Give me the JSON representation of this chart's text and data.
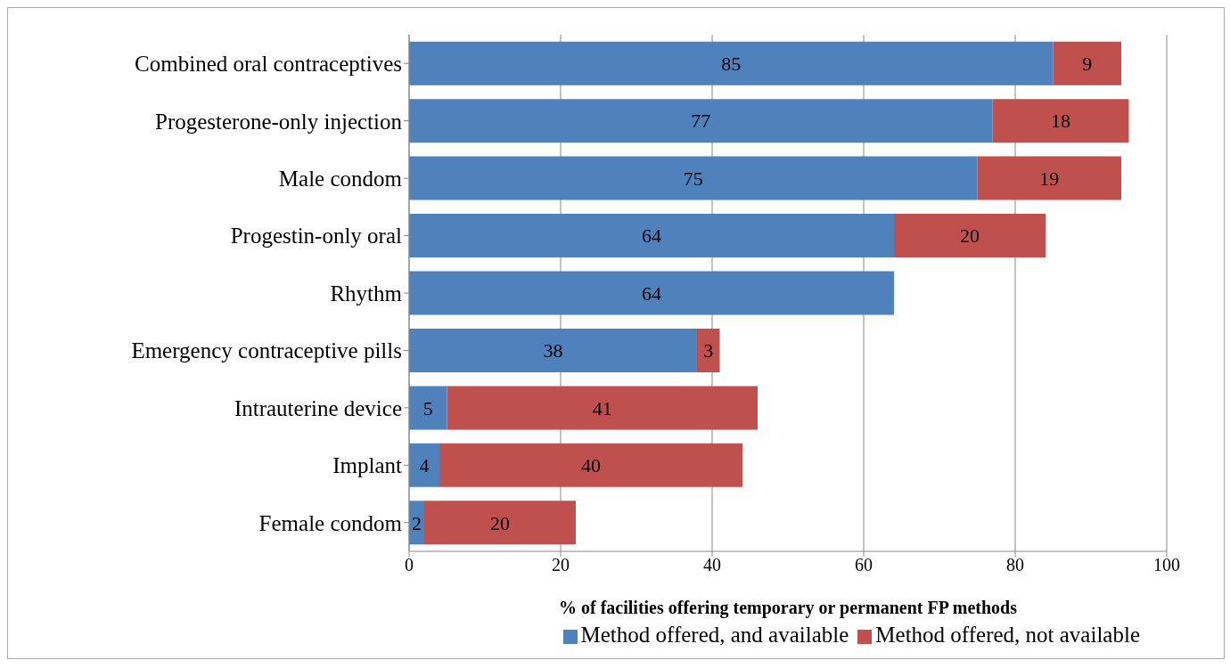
{
  "chart_data": {
    "type": "bar",
    "orientation": "horizontal",
    "stacked": true,
    "xlabel": "% of facilities offering temporary or permanent FP methods",
    "categories": [
      "Combined oral contraceptives",
      "Progesterone-only injection",
      "Male condom",
      "Progestin-only oral",
      "Rhythm",
      "Emergency contraceptive pills",
      "Intrauterine device",
      "Implant",
      "Female condom"
    ],
    "series": [
      {
        "name": "Method offered, and available",
        "color": "#4f81bd",
        "values": [
          85,
          77,
          75,
          64,
          64,
          38,
          5,
          4,
          2
        ]
      },
      {
        "name": "Method offered, not available",
        "color": "#c0504d",
        "values": [
          9,
          18,
          19,
          20,
          null,
          3,
          41,
          40,
          20
        ]
      }
    ],
    "xlim": [
      0,
      100
    ],
    "xticks": [
      0,
      20,
      40,
      60,
      80,
      100
    ],
    "grid": "x",
    "legend": "bottom",
    "data_labels": true
  }
}
